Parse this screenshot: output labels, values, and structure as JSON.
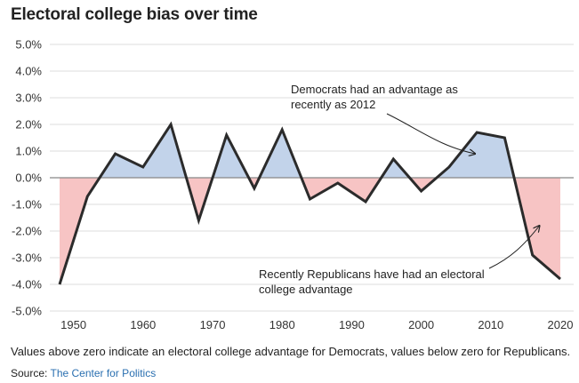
{
  "title": "Electoral college bias over time",
  "note": "Values above zero indicate an electoral college advantage for Democrats, values below zero for Republicans.",
  "source_label": "Source:",
  "source_name": "The Center for Politics",
  "colors": {
    "line": "#2b2b2b",
    "positive_fill": "#c2d3ea",
    "negative_fill": "#f7c4c4",
    "grid": "#dddddd",
    "zero_line": "#888888",
    "link": "#2a6fb0"
  },
  "chart_data": {
    "type": "line",
    "x": [
      1948,
      1952,
      1956,
      1960,
      1964,
      1968,
      1972,
      1976,
      1980,
      1984,
      1988,
      1992,
      1996,
      2000,
      2004,
      2008,
      2012,
      2016,
      2020
    ],
    "values": [
      -4.0,
      -0.7,
      0.9,
      0.4,
      2.0,
      -1.6,
      1.6,
      -0.4,
      1.8,
      -0.8,
      -0.2,
      -0.9,
      0.7,
      -0.5,
      0.4,
      1.7,
      1.5,
      -2.9,
      -3.8
    ],
    "ylim": [
      -5,
      5
    ],
    "yticks": [
      5,
      4,
      3,
      2,
      1,
      0,
      -1,
      -2,
      -3,
      -4,
      -5
    ],
    "ytick_labels": [
      "5.0%",
      "4.0%",
      "3.0%",
      "2.0%",
      "1.0%",
      "0.0%",
      "-1.0%",
      "-2.0%",
      "-3.0%",
      "-4.0%",
      "-5.0%"
    ],
    "xticks": [
      1950,
      1960,
      1970,
      1980,
      1990,
      2000,
      2010,
      2020
    ],
    "xtick_labels": [
      "1950",
      "1960",
      "1970",
      "1980",
      "1990",
      "2000",
      "2010",
      "2020"
    ],
    "grid": true,
    "fill_above_zero": true,
    "fill_below_zero": true,
    "annotations": [
      {
        "lines": [
          "Democrats had an advantage as",
          "recently as 2012"
        ],
        "points_to_x": 2008,
        "points_to_y": 0.9
      },
      {
        "lines": [
          "Recently Republicans have had an electoral",
          "college advantage"
        ],
        "points_to_x": 2017,
        "points_to_y": -1.8
      }
    ]
  }
}
